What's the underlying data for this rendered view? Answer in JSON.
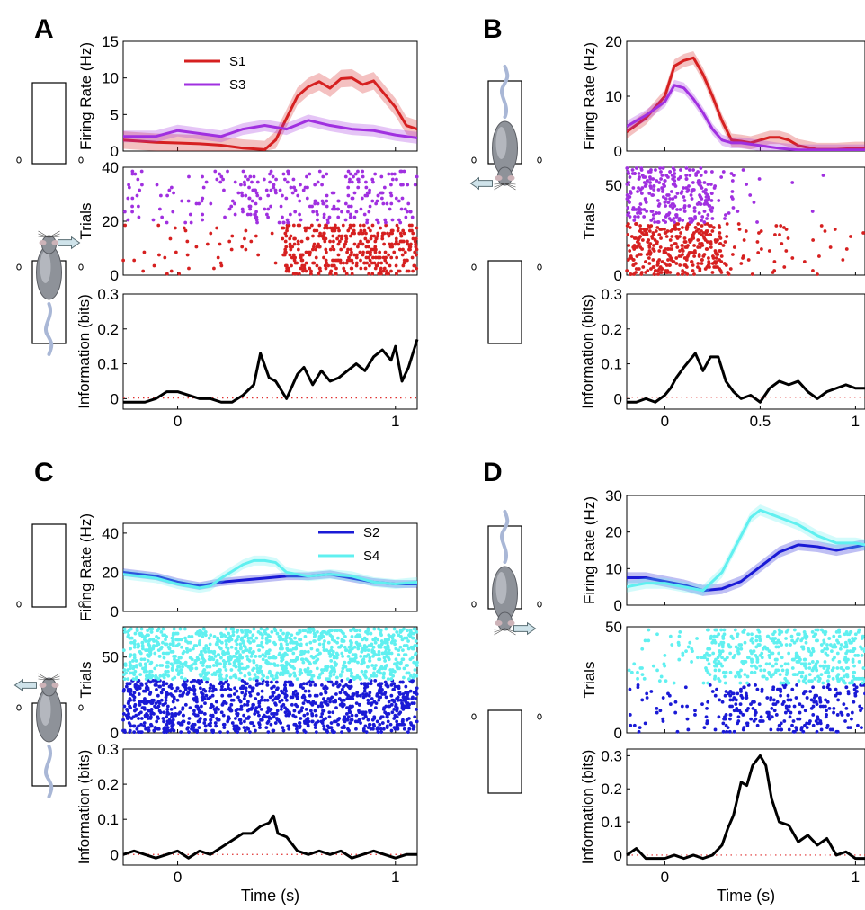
{
  "figure": {
    "shared_xlabel": "Time (s)"
  },
  "chart_data": [
    {
      "panel": "A",
      "type": "line",
      "xlim": [
        -0.25,
        1.1
      ],
      "xticks": [
        0,
        1
      ],
      "xlabel": "",
      "maze": {
        "animal": "bottom",
        "arrow": "right"
      },
      "rate": {
        "ylabel": "Firing Rate (Hz)",
        "ylim": [
          0,
          15
        ],
        "yticks": [
          0,
          5,
          10,
          15
        ],
        "legend": {
          "placement": "top-left"
        },
        "series": [
          {
            "name": "S1",
            "color": "#d62020",
            "band": 1.2,
            "x": [
              -0.25,
              -0.1,
              0,
              0.1,
              0.2,
              0.3,
              0.4,
              0.45,
              0.5,
              0.55,
              0.6,
              0.65,
              0.7,
              0.75,
              0.8,
              0.85,
              0.9,
              0.95,
              1.0,
              1.05,
              1.1
            ],
            "y": [
              1.5,
              1.2,
              1.1,
              1.0,
              0.8,
              0.4,
              0.2,
              1.5,
              4.5,
              7.5,
              8.8,
              9.5,
              8.6,
              9.9,
              10.0,
              9.1,
              9.6,
              7.8,
              6.0,
              3.5,
              3.0
            ]
          },
          {
            "name": "S3",
            "color": "#a030e0",
            "band": 0.8,
            "x": [
              -0.25,
              -0.1,
              0,
              0.1,
              0.2,
              0.3,
              0.4,
              0.5,
              0.6,
              0.7,
              0.8,
              0.9,
              1.0,
              1.1
            ],
            "y": [
              2.0,
              2.0,
              2.8,
              2.4,
              2.0,
              3.0,
              3.5,
              3.0,
              4.2,
              3.5,
              3.0,
              2.8,
              2.2,
              1.8
            ]
          }
        ]
      },
      "raster": {
        "ylabel": "Trials",
        "ylim": [
          0,
          40
        ],
        "yticks": [
          0,
          20,
          40
        ],
        "groups": [
          {
            "color": "#d62020",
            "seed": 11,
            "trials": [
              0,
              18
            ],
            "rates": [
              [
                -0.25,
                0.48,
                3
              ],
              [
                0.48,
                1.1,
                32
              ]
            ]
          },
          {
            "color": "#a030e0",
            "seed": 23,
            "trials": [
              19,
              38
            ],
            "rates": [
              [
                -0.25,
                0.3,
                6
              ],
              [
                0.3,
                1.1,
                14
              ]
            ]
          }
        ]
      },
      "info": {
        "ylabel": "Information (bits)",
        "ylim": [
          -0.03,
          0.3
        ],
        "yticks": [
          0,
          0.1,
          0.2,
          0.3
        ],
        "x": [
          -0.25,
          -0.2,
          -0.15,
          -0.1,
          -0.05,
          0,
          0.05,
          0.1,
          0.15,
          0.2,
          0.25,
          0.3,
          0.35,
          0.38,
          0.42,
          0.45,
          0.5,
          0.55,
          0.58,
          0.62,
          0.66,
          0.7,
          0.74,
          0.78,
          0.82,
          0.86,
          0.9,
          0.94,
          0.98,
          1.0,
          1.03,
          1.06,
          1.1
        ],
        "y": [
          -0.01,
          -0.01,
          -0.01,
          0.0,
          0.02,
          0.02,
          0.01,
          0.0,
          0.0,
          -0.01,
          -0.01,
          0.01,
          0.04,
          0.13,
          0.06,
          0.05,
          0.0,
          0.07,
          0.09,
          0.04,
          0.08,
          0.05,
          0.06,
          0.08,
          0.1,
          0.08,
          0.12,
          0.14,
          0.11,
          0.15,
          0.05,
          0.09,
          0.17
        ],
        "chance": 0.002
      }
    },
    {
      "panel": "B",
      "type": "line",
      "xlim": [
        -0.2,
        1.05
      ],
      "xticks": [
        0,
        0.5,
        1
      ],
      "xlabel": "",
      "maze": {
        "animal": "top",
        "arrow": "left"
      },
      "rate": {
        "ylabel": "Firing Rate (Hz)",
        "ylim": [
          0,
          20
        ],
        "yticks": [
          0,
          10,
          20
        ],
        "series": [
          {
            "name": "",
            "color": "#d62020",
            "band": 1.2,
            "x": [
              -0.2,
              -0.1,
              0,
              0.05,
              0.1,
              0.15,
              0.2,
              0.25,
              0.3,
              0.35,
              0.4,
              0.45,
              0.5,
              0.55,
              0.6,
              0.65,
              0.7,
              0.8,
              0.9,
              1.0,
              1.05
            ],
            "y": [
              3.5,
              6.0,
              10.0,
              15.5,
              16.5,
              17.0,
              14.0,
              10.0,
              5.5,
              2.0,
              1.8,
              1.5,
              2.0,
              2.5,
              2.5,
              2.0,
              1.0,
              0.3,
              0.3,
              0.5,
              0.5
            ]
          },
          {
            "name": "",
            "color": "#a030e0",
            "band": 1.0,
            "x": [
              -0.2,
              -0.1,
              0,
              0.05,
              0.1,
              0.15,
              0.2,
              0.25,
              0.3,
              0.35,
              0.4,
              0.5,
              0.6,
              0.7,
              0.8,
              0.9,
              1.0,
              1.05
            ],
            "y": [
              4.5,
              6.5,
              9.0,
              12.0,
              11.5,
              9.5,
              7.0,
              4.0,
              2.0,
              1.5,
              1.5,
              1.0,
              0.5,
              0.2,
              0.2,
              0.2,
              0.2,
              0.2
            ]
          }
        ]
      },
      "raster": {
        "ylabel": "Trials",
        "ylim": [
          0,
          60
        ],
        "yticks": [
          0,
          50
        ],
        "groups": [
          {
            "color": "#d62020",
            "seed": 37,
            "trials": [
              0,
              28
            ],
            "rates": [
              [
                -0.2,
                0.3,
                22
              ],
              [
                0.3,
                0.65,
                4
              ],
              [
                0.65,
                1.05,
                1
              ]
            ]
          },
          {
            "color": "#a030e0",
            "seed": 51,
            "trials": [
              29,
              59
            ],
            "rates": [
              [
                -0.2,
                0.25,
                18
              ],
              [
                0.25,
                0.5,
                3
              ],
              [
                0.5,
                1.05,
                0.4
              ]
            ]
          }
        ]
      },
      "info": {
        "ylabel": "Information (bits)",
        "ylim": [
          -0.03,
          0.3
        ],
        "yticks": [
          0,
          0.1,
          0.2,
          0.3
        ],
        "x": [
          -0.2,
          -0.15,
          -0.1,
          -0.05,
          0,
          0.03,
          0.06,
          0.1,
          0.13,
          0.16,
          0.2,
          0.24,
          0.28,
          0.32,
          0.36,
          0.4,
          0.45,
          0.5,
          0.55,
          0.6,
          0.65,
          0.7,
          0.75,
          0.8,
          0.85,
          0.9,
          0.95,
          1.0,
          1.05
        ],
        "y": [
          -0.01,
          -0.01,
          0.0,
          -0.01,
          0.01,
          0.03,
          0.06,
          0.09,
          0.11,
          0.13,
          0.08,
          0.12,
          0.12,
          0.05,
          0.02,
          0.0,
          0.01,
          -0.01,
          0.03,
          0.05,
          0.04,
          0.05,
          0.02,
          0.0,
          0.02,
          0.03,
          0.04,
          0.03,
          0.03
        ],
        "chance": 0.004
      }
    },
    {
      "panel": "C",
      "type": "line",
      "xlim": [
        -0.25,
        1.1
      ],
      "xticks": [
        0,
        1
      ],
      "xlabel": "Time (s)",
      "maze": {
        "animal": "bottom",
        "arrow": "left"
      },
      "rate": {
        "ylabel": "Firing Rate (Hz)",
        "ylim": [
          0,
          45
        ],
        "yticks": [
          0,
          20,
          40
        ],
        "legend": {
          "placement": "top-right"
        },
        "series": [
          {
            "name": "S2",
            "color": "#1a1ad6",
            "band": 2.0,
            "x": [
              -0.25,
              -0.1,
              0,
              0.1,
              0.2,
              0.3,
              0.4,
              0.5,
              0.6,
              0.7,
              0.8,
              0.9,
              1.0,
              1.1
            ],
            "y": [
              20,
              18,
              15,
              13,
              15,
              16,
              17,
              18,
              18,
              19,
              17,
              15,
              14,
              14
            ]
          },
          {
            "name": "S4",
            "color": "#60f0f0",
            "band": 2.5,
            "x": [
              -0.25,
              -0.1,
              0,
              0.1,
              0.15,
              0.2,
              0.3,
              0.35,
              0.4,
              0.45,
              0.5,
              0.6,
              0.7,
              0.8,
              0.9,
              1.0,
              1.1
            ],
            "y": [
              19,
              17,
              14,
              12,
              13,
              17,
              24,
              26,
              26,
              25,
              20,
              18,
              19,
              18,
              15,
              14,
              15
            ]
          }
        ]
      },
      "raster": {
        "ylabel": "Trials",
        "ylim": [
          0,
          70
        ],
        "yticks": [
          0,
          50
        ],
        "groups": [
          {
            "color": "#1a1ad6",
            "seed": 67,
            "trials": [
              0,
              34
            ],
            "rates": [
              [
                -0.25,
                1.1,
                22
              ]
            ]
          },
          {
            "color": "#60f0f0",
            "seed": 79,
            "trials": [
              35,
              68
            ],
            "rates": [
              [
                -0.25,
                1.1,
                24
              ]
            ]
          }
        ]
      },
      "info": {
        "ylabel": "Information (bits)",
        "ylim": [
          -0.03,
          0.3
        ],
        "yticks": [
          0,
          0.1,
          0.2,
          0.3
        ],
        "x": [
          -0.25,
          -0.2,
          -0.15,
          -0.1,
          -0.05,
          0,
          0.05,
          0.1,
          0.15,
          0.2,
          0.25,
          0.3,
          0.34,
          0.38,
          0.42,
          0.44,
          0.46,
          0.5,
          0.55,
          0.6,
          0.65,
          0.7,
          0.75,
          0.8,
          0.85,
          0.9,
          0.95,
          1.0,
          1.05,
          1.1
        ],
        "y": [
          0.0,
          0.01,
          0.0,
          -0.01,
          0.0,
          0.01,
          -0.01,
          0.01,
          0.0,
          0.02,
          0.04,
          0.06,
          0.06,
          0.08,
          0.09,
          0.11,
          0.06,
          0.05,
          0.01,
          0.0,
          0.01,
          0.0,
          0.01,
          -0.01,
          0.0,
          0.01,
          0.0,
          -0.01,
          0.0,
          0.0
        ],
        "chance": 0.0
      }
    },
    {
      "panel": "D",
      "type": "line",
      "xlim": [
        -0.2,
        1.05
      ],
      "xticks": [
        0,
        1
      ],
      "xlabel": "Time (s)",
      "maze": {
        "animal": "top",
        "arrow": "right"
      },
      "rate": {
        "ylabel": "Firing Rate (Hz)",
        "ylim": [
          0,
          30
        ],
        "yticks": [
          0,
          10,
          20,
          30
        ],
        "series": [
          {
            "name": "",
            "color": "#1a1ad6",
            "band": 1.5,
            "x": [
              -0.2,
              -0.1,
              0,
              0.1,
              0.2,
              0.3,
              0.4,
              0.5,
              0.6,
              0.7,
              0.8,
              0.9,
              1.0,
              1.05
            ],
            "y": [
              7.5,
              7.5,
              6.5,
              5.5,
              4.0,
              4.5,
              6.5,
              10.5,
              14.5,
              16.5,
              16.0,
              15.0,
              16.0,
              16.5
            ]
          },
          {
            "name": "",
            "color": "#60f0f0",
            "band": 1.5,
            "x": [
              -0.2,
              -0.1,
              0,
              0.1,
              0.2,
              0.3,
              0.35,
              0.4,
              0.45,
              0.5,
              0.55,
              0.6,
              0.7,
              0.8,
              0.9,
              1.0,
              1.05
            ],
            "y": [
              5.0,
              6.0,
              6.0,
              5.0,
              4.0,
              9.0,
              14.0,
              19.0,
              24.0,
              26.0,
              25.0,
              24.0,
              22.0,
              19.0,
              17.0,
              17.0,
              16.5
            ]
          }
        ]
      },
      "raster": {
        "ylabel": "Trials",
        "ylim": [
          0,
          50
        ],
        "yticks": [
          0,
          50
        ],
        "groups": [
          {
            "color": "#1a1ad6",
            "seed": 91,
            "trials": [
              0,
              22
            ],
            "rates": [
              [
                -0.2,
                0.3,
                4
              ],
              [
                0.3,
                1.05,
                14
              ]
            ]
          },
          {
            "color": "#60f0f0",
            "seed": 103,
            "trials": [
              23,
              48
            ],
            "rates": [
              [
                -0.2,
                0.2,
                4
              ],
              [
                0.2,
                1.05,
                20
              ]
            ]
          }
        ]
      },
      "info": {
        "ylabel": "Information (bits)",
        "ylim": [
          -0.03,
          0.32
        ],
        "yticks": [
          0,
          0.1,
          0.2,
          0.3
        ],
        "x": [
          -0.2,
          -0.15,
          -0.1,
          -0.05,
          0,
          0.05,
          0.1,
          0.15,
          0.2,
          0.25,
          0.3,
          0.33,
          0.36,
          0.4,
          0.43,
          0.46,
          0.5,
          0.53,
          0.56,
          0.6,
          0.65,
          0.7,
          0.75,
          0.8,
          0.85,
          0.9,
          0.95,
          1.0,
          1.05
        ],
        "y": [
          0.0,
          0.02,
          -0.01,
          -0.01,
          -0.01,
          0.0,
          -0.01,
          0.0,
          -0.01,
          0.0,
          0.03,
          0.08,
          0.12,
          0.22,
          0.21,
          0.27,
          0.3,
          0.27,
          0.17,
          0.1,
          0.09,
          0.04,
          0.06,
          0.03,
          0.05,
          0.0,
          0.01,
          -0.01,
          -0.01
        ],
        "chance": 0.0
      }
    }
  ]
}
